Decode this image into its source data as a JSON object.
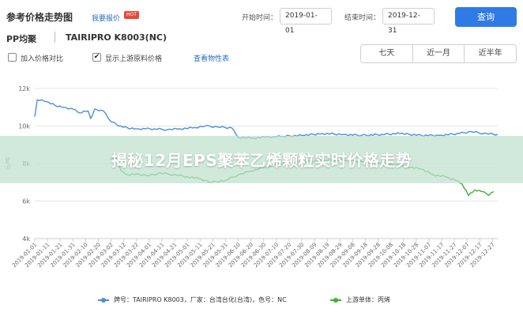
{
  "header": {
    "title": "参考价格走势图",
    "report_link": "我要报价",
    "hot_badge": "HOT",
    "start_label": "开始时间：",
    "start_date": "2019-01-01",
    "end_label": "结束时间：",
    "end_date": "2019-12-31",
    "query_button": "查询"
  },
  "product": {
    "name": "PP均聚",
    "grade": "TAIRIPRO K8003(NC)"
  },
  "options": {
    "add_price_compare": "加入价格对比",
    "add_price_compare_checked": false,
    "show_upstream": "显示上游原料价格",
    "show_upstream_checked": true,
    "view_trend": "查看物性表"
  },
  "range_buttons": [
    "七天",
    "近一月",
    "近半年"
  ],
  "banner": {
    "text": "揭秘12月EPS聚苯乙烯颗粒实时价格走势"
  },
  "colors": {
    "primary_series": "#4a8fd8",
    "upstream_series": "#3fae3f",
    "query_button": "#2f7be6",
    "link": "#2a6fc0",
    "banner": "#bee1cd"
  },
  "chart_data": {
    "type": "line",
    "ylabel": "元/吨",
    "ylim": [
      4000,
      12000
    ],
    "yticks": [
      4000,
      6000,
      8000,
      10000,
      12000
    ],
    "ytick_labels": [
      "4k",
      "6k",
      "8k",
      "10k",
      "12k"
    ],
    "xtick_labels": [
      "2019-01-01",
      "2019-01-11",
      "2019-01-21",
      "2019-01-31",
      "2019-02-10",
      "2019-02-20",
      "2019-03-02",
      "2019-03-12",
      "2019-03-22",
      "2019-04-01",
      "2019-04-11",
      "2019-04-21",
      "2019-05-01",
      "2019-05-11",
      "2019-05-21",
      "2019-05-31",
      "2019-06-10",
      "2019-06-20",
      "2019-06-30",
      "2019-07-10",
      "2019-07-20",
      "2019-07-30",
      "2019-08-09",
      "2019-08-19",
      "2019-08-29",
      "2019-09-08",
      "2019-09-18",
      "2019-09-28",
      "2019-10-08",
      "2019-10-18",
      "2019-10-28",
      "2019-11-07",
      "2019-11-17",
      "2019-11-27",
      "2019-12-07",
      "2019-12-17",
      "2019-12-27"
    ],
    "grid": true,
    "legend_position": "bottom",
    "series": [
      {
        "name": "牌号：TAIRIPRO K8003，厂家：台湾台化(台湾)，色号：NC",
        "color": "#4a8fd8",
        "points": [
          [
            "2019-01-01",
            10500
          ],
          [
            "2019-01-03",
            11400
          ],
          [
            "2019-01-10",
            11300
          ],
          [
            "2019-01-17",
            11100
          ],
          [
            "2019-01-24",
            11000
          ],
          [
            "2019-01-31",
            10900
          ],
          [
            "2019-02-05",
            10700
          ],
          [
            "2019-02-12",
            10800
          ],
          [
            "2019-02-14",
            10400
          ],
          [
            "2019-02-17",
            10900
          ],
          [
            "2019-02-24",
            10800
          ],
          [
            "2019-03-01",
            10300
          ],
          [
            "2019-03-08",
            10000
          ],
          [
            "2019-03-15",
            9900
          ],
          [
            "2019-03-22",
            9850
          ],
          [
            "2019-03-29",
            9850
          ],
          [
            "2019-04-05",
            9850
          ],
          [
            "2019-04-15",
            9800
          ],
          [
            "2019-04-25",
            9850
          ],
          [
            "2019-05-05",
            9900
          ],
          [
            "2019-05-15",
            10000
          ],
          [
            "2019-05-25",
            9950
          ],
          [
            "2019-06-05",
            9900
          ],
          [
            "2019-06-10",
            9400
          ],
          [
            "2019-06-20",
            9350
          ],
          [
            "2019-07-01",
            9400
          ],
          [
            "2019-07-15",
            9450
          ],
          [
            "2019-08-01",
            9500
          ],
          [
            "2019-08-15",
            9600
          ],
          [
            "2019-09-01",
            9550
          ],
          [
            "2019-09-15",
            9500
          ],
          [
            "2019-10-01",
            9550
          ],
          [
            "2019-10-15",
            9600
          ],
          [
            "2019-11-01",
            9500
          ],
          [
            "2019-11-15",
            9500
          ],
          [
            "2019-12-01",
            9600
          ],
          [
            "2019-12-10",
            9700
          ],
          [
            "2019-12-20",
            9600
          ],
          [
            "2019-12-31",
            9550
          ]
        ]
      },
      {
        "name": "上游单体：丙烯",
        "color": "#3fae3f",
        "points": [
          [
            "2019-03-01",
            8200
          ],
          [
            "2019-03-06",
            8300
          ],
          [
            "2019-03-10",
            7600
          ],
          [
            "2019-03-15",
            7400
          ],
          [
            "2019-03-22",
            7450
          ],
          [
            "2019-04-01",
            7350
          ],
          [
            "2019-04-10",
            7500
          ],
          [
            "2019-04-20",
            7400
          ],
          [
            "2019-05-01",
            7300
          ],
          [
            "2019-05-10",
            7200
          ],
          [
            "2019-05-20",
            7000
          ],
          [
            "2019-05-31",
            7100
          ],
          [
            "2019-06-10",
            7400
          ],
          [
            "2019-06-20",
            7600
          ],
          [
            "2019-07-01",
            7800
          ],
          [
            "2019-07-15",
            8000
          ],
          [
            "2019-08-01",
            8100
          ],
          [
            "2019-08-15",
            8150
          ],
          [
            "2019-09-01",
            8200
          ],
          [
            "2019-09-15",
            8100
          ],
          [
            "2019-10-01",
            8000
          ],
          [
            "2019-10-15",
            7900
          ],
          [
            "2019-11-01",
            7700
          ],
          [
            "2019-11-10",
            7400
          ],
          [
            "2019-11-20",
            7300
          ],
          [
            "2019-11-28",
            7100
          ],
          [
            "2019-12-03",
            6900
          ],
          [
            "2019-12-08",
            6300
          ],
          [
            "2019-12-13",
            6600
          ],
          [
            "2019-12-20",
            6500
          ],
          [
            "2019-12-24",
            6300
          ],
          [
            "2019-12-28",
            6500
          ]
        ]
      }
    ]
  }
}
